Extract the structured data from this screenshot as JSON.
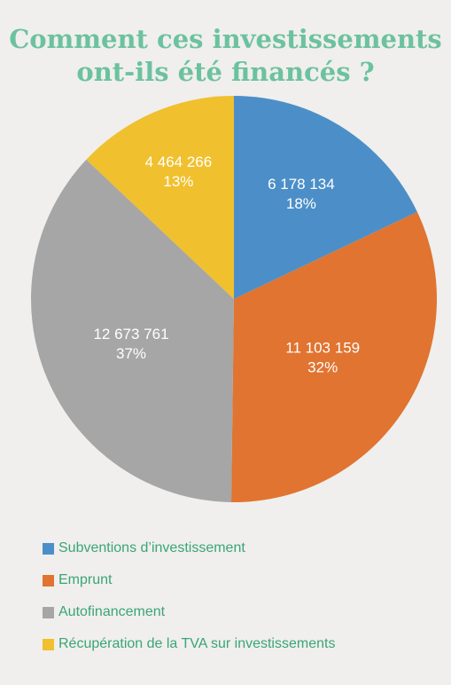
{
  "chart_data": {
    "type": "pie",
    "title": [
      "Comment ces investissements",
      "ont-ils été financés ?"
    ],
    "slices": [
      {
        "name": "Subventions d’investissement",
        "value": 6178134,
        "value_label": "6 178 134",
        "percent_label": "18%",
        "color": "#4c8fc8"
      },
      {
        "name": "Emprunt",
        "value": 11103159,
        "value_label": "11 103 159",
        "percent_label": "32%",
        "color": "#e07430"
      },
      {
        "name": "Autofinancement",
        "value": 12673761,
        "value_label": "12 673 761",
        "percent_label": "37%",
        "color": "#a6a6a6"
      },
      {
        "name": "Récupération de la TVA sur investissements",
        "value": 4464266,
        "value_label": "4 464 266",
        "percent_label": "13%",
        "color": "#f0c02e"
      }
    ],
    "start_angle_deg": 0,
    "direction": "clockwise",
    "legend_position": "bottom-left"
  }
}
